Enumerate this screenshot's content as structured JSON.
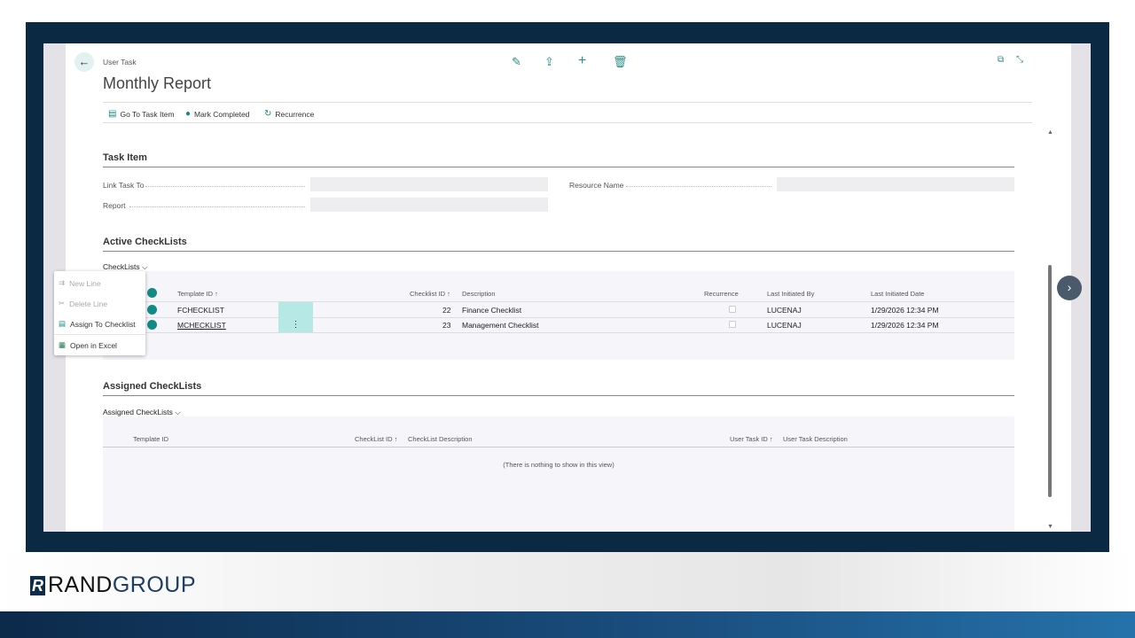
{
  "header": {
    "breadcrumb": "User Task",
    "title": "Monthly Report"
  },
  "toolbar": {
    "icons": [
      "edit-icon",
      "share-icon",
      "add-icon",
      "delete-icon"
    ]
  },
  "actions": [
    {
      "label": "Go To Task Item",
      "icon": "task-item-icon"
    },
    {
      "label": "Mark Completed",
      "icon": "check-circle-icon"
    },
    {
      "label": "Recurrence",
      "icon": "refresh-icon"
    }
  ],
  "task_item": {
    "heading": "Task Item",
    "link_label": "Link Task To",
    "link_value": "",
    "report_label": "Report",
    "report_value": "",
    "resource_label": "Resource Name",
    "resource_value": ""
  },
  "active": {
    "heading": "Active CheckLists",
    "tab": "CheckLists",
    "columns": [
      "Template ID ↑",
      "Checklist ID ↑",
      "Description",
      "Recurrence",
      "Last Initiated By",
      "Last Initiated Date"
    ],
    "rows": [
      {
        "template": "FCHECKLIST",
        "id": "22",
        "description": "Finance Checklist",
        "recurrence": false,
        "by": "LUCENAJ",
        "date": "1/29/2026 12:34 PM"
      },
      {
        "template": "MCHECKLIST",
        "id": "23",
        "description": "Management Checklist",
        "recurrence": false,
        "by": "LUCENAJ",
        "date": "1/29/2026 12:34 PM"
      }
    ]
  },
  "menu": [
    {
      "label": "New Line",
      "disabled": true
    },
    {
      "label": "Delete Line",
      "disabled": true
    },
    {
      "label": "Assign To Checklist",
      "disabled": false
    },
    {
      "label": "Open in Excel",
      "disabled": false
    }
  ],
  "assigned": {
    "heading": "Assigned CheckLists",
    "tab": "Assigned CheckLists",
    "columns": [
      "Template ID",
      "CheckList ID ↑",
      "CheckList Description",
      "User Task ID ↑",
      "User Task Description"
    ],
    "empty": "(There is nothing to show in this view)"
  },
  "branding": {
    "logo": "RANDGROUP"
  },
  "colors": {
    "accent": "#138a85",
    "frame": "#0c2944"
  }
}
